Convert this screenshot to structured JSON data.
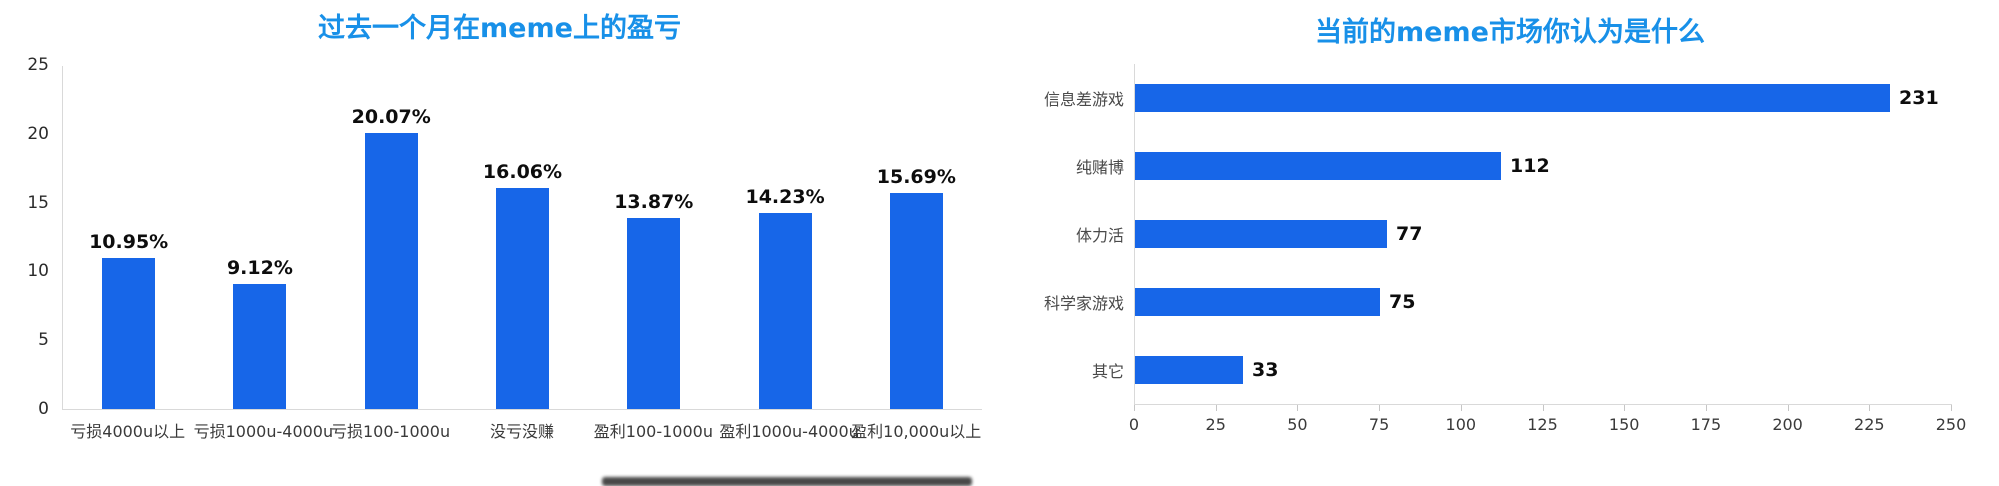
{
  "theme": {
    "background": "#ffffff",
    "title_color": "#1890e8",
    "bar_color": "#1766e8",
    "axis_color": "#d9d9d9",
    "tick_label_color": "#3a3a3a",
    "data_label_color": "#0d0d0d"
  },
  "chart_data": [
    {
      "type": "bar",
      "orientation": "vertical",
      "title": "过去一个月在meme上的盈亏",
      "categories": [
        "亏损4000u以上",
        "亏损1000u-4000u",
        "亏损100-1000u",
        "没亏没赚",
        "盈利100-1000u",
        "盈利1000u-4000u",
        "盈利10,000u以上"
      ],
      "values": [
        10.95,
        9.12,
        20.07,
        16.06,
        13.87,
        14.23,
        15.69
      ],
      "data_labels": [
        "10.95%",
        "9.12%",
        "20.07%",
        "16.06%",
        "13.87%",
        "14.23%",
        "15.69%"
      ],
      "ylim": [
        0,
        25
      ],
      "yticks": [
        0,
        5,
        10,
        15,
        20,
        25
      ],
      "xlabel": "",
      "ylabel": "",
      "grid": false,
      "legend": "none"
    },
    {
      "type": "bar",
      "orientation": "horizontal",
      "title": "当前的meme市场你认为是什么",
      "categories": [
        "信息差游戏",
        "纯赌博",
        "体力活",
        "科学家游戏",
        "其它"
      ],
      "values": [
        231,
        112,
        77,
        75,
        33
      ],
      "data_labels": [
        "231",
        "112",
        "77",
        "75",
        "33"
      ],
      "xlim": [
        0,
        250
      ],
      "xticks": [
        0,
        25,
        50,
        75,
        100,
        125,
        150,
        175,
        200,
        225,
        250
      ],
      "xlabel": "",
      "ylabel": "",
      "grid": false,
      "legend": "none"
    }
  ]
}
